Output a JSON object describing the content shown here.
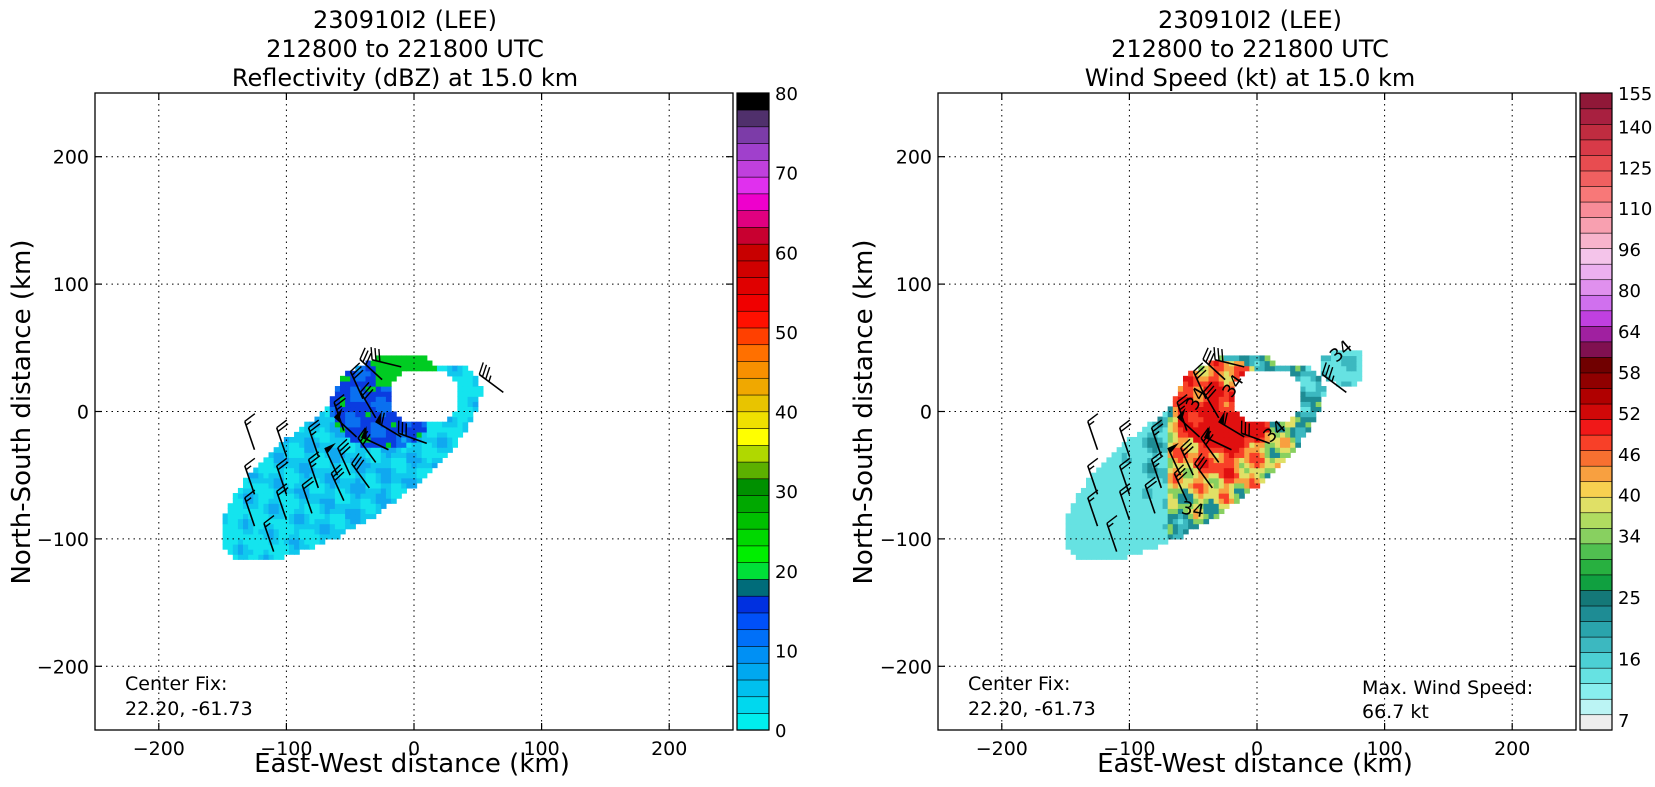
{
  "chart_data": [
    {
      "type": "heatmap",
      "title_lines": [
        "230910I2 (LEE)",
        "212800 to 221800 UTC",
        "Reflectivity (dBZ) at 15.0 km"
      ],
      "xlabel": "East-West distance (km)",
      "ylabel": "North-South distance (km)",
      "xlim": [
        -250,
        250
      ],
      "ylim": [
        -250,
        250
      ],
      "xticks": [
        -200,
        -100,
        0,
        100,
        200
      ],
      "yticks": [
        -200,
        -100,
        0,
        100,
        200
      ],
      "grid": true,
      "colorbar": {
        "ticks": [
          0,
          10,
          20,
          30,
          40,
          50,
          60,
          70,
          80
        ],
        "range": [
          0,
          80
        ],
        "colors": [
          "#00eeee",
          "#00d8ee",
          "#00c0ee",
          "#00a8f0",
          "#0090f4",
          "#0070f8",
          "#0050f8",
          "#0030e0",
          "#006c7a",
          "#00e038",
          "#00ee00",
          "#00d800",
          "#00c000",
          "#00a800",
          "#009000",
          "#5cb000",
          "#b0d800",
          "#ffff00",
          "#f0e000",
          "#e8c400",
          "#f0a800",
          "#f89000",
          "#ff7000",
          "#ff4000",
          "#ff1000",
          "#f00000",
          "#e00000",
          "#d00000",
          "#c80000",
          "#c80030",
          "#e00080",
          "#ee00cc",
          "#e030ee",
          "#c040dd",
          "#a040cc",
          "#7c3ca8",
          "#50306c",
          "#000000"
        ]
      },
      "annotation_lines": [
        "Center Fix:",
        "22.20, -61.73"
      ],
      "max_annotation_lines": []
    },
    {
      "type": "heatmap",
      "title_lines": [
        "230910I2 (LEE)",
        "212800 to 221800 UTC",
        "Wind Speed (kt) at 15.0 km"
      ],
      "xlabel": "East-West distance (km)",
      "ylabel": "North-South distance (km)",
      "xlim": [
        -250,
        250
      ],
      "ylim": [
        -250,
        250
      ],
      "xticks": [
        -200,
        -100,
        0,
        100,
        200
      ],
      "yticks": [
        -200,
        -100,
        0,
        100,
        200
      ],
      "grid": true,
      "colorbar": {
        "ticks": [
          7,
          16,
          25,
          34,
          40,
          46,
          52,
          58,
          64,
          80,
          96,
          110,
          125,
          140,
          155
        ],
        "tick_bins": [
          0,
          3,
          6,
          9,
          11,
          13,
          15,
          17,
          19,
          21,
          23,
          25,
          27,
          29,
          31
        ],
        "colors": [
          "#eeeeee",
          "#bbf4f4",
          "#88eeee",
          "#66e2e2",
          "#4cd0d4",
          "#3cb8c0",
          "#2aa4ac",
          "#1e8c94",
          "#147878",
          "#10a040",
          "#28b040",
          "#50c050",
          "#88d060",
          "#b0dc60",
          "#e0e066",
          "#f8d050",
          "#f8a040",
          "#f87030",
          "#f84028",
          "#f01818",
          "#d00808",
          "#b00000",
          "#900000",
          "#700000",
          "#801050",
          "#a020a0",
          "#c040e0",
          "#d070ee",
          "#e090ee",
          "#ecb0f0",
          "#f4c4ea",
          "#f8b4cc",
          "#f8a0b0",
          "#f88c98",
          "#f87878",
          "#f06060",
          "#e84c50",
          "#d83a48",
          "#c02c40",
          "#a82040",
          "#901838"
        ]
      },
      "annotation_lines": [
        "Center Fix:",
        "22.20, -61.73"
      ],
      "max_annotation_lines": [
        "Max. Wind Speed:",
        "66.7 kt"
      ],
      "contour_label": "34"
    }
  ]
}
